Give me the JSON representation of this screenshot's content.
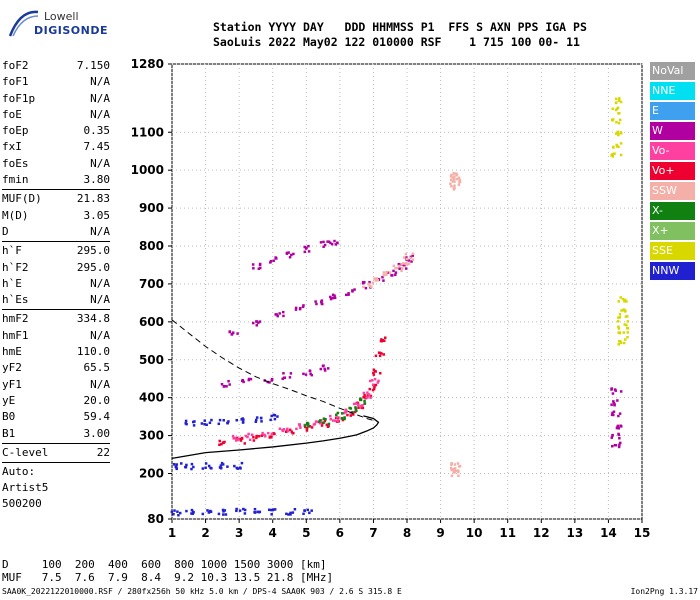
{
  "logo": {
    "line1": "Lowell",
    "line2": "DIGISONDE"
  },
  "header": {
    "line1": "Station YYYY DAY   DDD HHMMSS P1  FFS S AXN PPS IGA PS",
    "line2": "SaoLuis 2022 May02 122 010000 RSF    1 715 100 00- 11"
  },
  "params_groups": [
    [
      {
        "k": "foF2",
        "v": "7.150"
      },
      {
        "k": "foF1",
        "v": "N/A"
      },
      {
        "k": "foF1p",
        "v": "N/A"
      },
      {
        "k": "foE",
        "v": "N/A"
      },
      {
        "k": "foEp",
        "v": "0.35"
      },
      {
        "k": "fxI",
        "v": "7.45"
      },
      {
        "k": "foEs",
        "v": "N/A"
      },
      {
        "k": "fmin",
        "v": "3.80"
      }
    ],
    [
      {
        "k": "MUF(D)",
        "v": "21.83"
      },
      {
        "k": "M(D)",
        "v": "3.05"
      },
      {
        "k": "D",
        "v": "N/A"
      }
    ],
    [
      {
        "k": "h`F",
        "v": "295.0"
      },
      {
        "k": "h`F2",
        "v": "295.0"
      },
      {
        "k": "h`E",
        "v": "N/A"
      },
      {
        "k": "h`Es",
        "v": "N/A"
      }
    ],
    [
      {
        "k": "hmF2",
        "v": "334.8"
      },
      {
        "k": "hmF1",
        "v": "N/A"
      },
      {
        "k": "hmE",
        "v": "110.0"
      },
      {
        "k": "yF2",
        "v": "65.5"
      },
      {
        "k": "yF1",
        "v": "N/A"
      },
      {
        "k": "yE",
        "v": "20.0"
      },
      {
        "k": "B0",
        "v": "59.4"
      },
      {
        "k": "B1",
        "v": "3.00"
      }
    ],
    [
      {
        "k": "C-level",
        "v": "22"
      }
    ]
  ],
  "params_extra": [
    "Auto:",
    "Artist5",
    "500200"
  ],
  "legend": [
    {
      "label": "NoVal",
      "color": "#a0a0a0"
    },
    {
      "label": "NNE",
      "color": "#00e0f0"
    },
    {
      "label": "E",
      "color": "#3fa0f0"
    },
    {
      "label": "W",
      "color": "#b000a0"
    },
    {
      "label": "Vo-",
      "color": "#ff40a0"
    },
    {
      "label": "Vo+",
      "color": "#ee0030"
    },
    {
      "label": "SSW",
      "color": "#f4b0a8"
    },
    {
      "label": "X-",
      "color": "#108010"
    },
    {
      "label": "X+",
      "color": "#80c060"
    },
    {
      "label": "SSE",
      "color": "#d8d800"
    },
    {
      "label": "NNW",
      "color": "#2020d0"
    }
  ],
  "footer": {
    "line1": "D     100  200  400  600  800 1000 1500 3000 [km]",
    "line2": "MUF   7.5  7.6  7.9  8.4  9.2 10.3 13.5 21.8 [MHz]"
  },
  "bottom": {
    "left": "SAA0K_2022122010000.RSF / 280fx256h 50 kHz 5.0 km / DPS-4 SAA0K 903 / 2.6 S 315.8 E",
    "right": "Ion2Png 1.3.17"
  },
  "chart_data": {
    "type": "scatter",
    "xlim": [
      1,
      15
    ],
    "ylim": [
      80,
      1280
    ],
    "x_ticks": [
      1,
      2,
      3,
      4,
      5,
      6,
      7,
      8,
      9,
      10,
      11,
      12,
      13,
      14,
      15
    ],
    "y_ticks": [
      80,
      200,
      300,
      400,
      500,
      600,
      700,
      800,
      900,
      1000,
      1100,
      1280
    ],
    "grid": true,
    "profile": {
      "x": [
        1.0,
        2.0,
        3.0,
        4.0,
        5.0,
        5.5,
        6.0,
        6.5,
        6.8,
        7.0,
        7.1,
        7.15,
        7.0,
        6.7
      ],
      "y": [
        240,
        255,
        262,
        270,
        280,
        286,
        293,
        302,
        312,
        320,
        328,
        335,
        345,
        352
      ]
    },
    "mufd": {
      "x": [
        1.0,
        1.5,
        2.0,
        2.5,
        3.0,
        3.5,
        4.0,
        4.5,
        5.0,
        5.5,
        6.0,
        6.5,
        6.8,
        7.0
      ],
      "y": [
        605,
        570,
        535,
        505,
        478,
        455,
        437,
        422,
        405,
        390,
        372,
        355,
        345,
        340
      ]
    },
    "traces": [
      {
        "name": "F-trace",
        "color": "#ee0030",
        "x": [
          2.5,
          3,
          3.5,
          4,
          4.5,
          5,
          5.5,
          6,
          6.3,
          6.6,
          6.8,
          7.0,
          7.1,
          7.15,
          7.2
        ],
        "y": [
          285,
          290,
          298,
          305,
          312,
          322,
          334,
          348,
          362,
          382,
          402,
          430,
          470,
          520,
          560
        ]
      },
      {
        "name": "F-trace-2",
        "color": "#ff40a0",
        "x": [
          2.8,
          3.3,
          3.8,
          4.3,
          4.8,
          5.3,
          5.8,
          6.2,
          6.5,
          6.8,
          7.0
        ],
        "y": [
          295,
          300,
          308,
          316,
          325,
          336,
          350,
          366,
          385,
          410,
          445
        ]
      },
      {
        "name": "F-trace-3",
        "color": "#108010",
        "x": [
          5.0,
          5.5,
          6.0,
          6.4,
          6.7
        ],
        "y": [
          330,
          340,
          355,
          372,
          395
        ]
      },
      {
        "name": "2F-trace",
        "color": "#b000a0",
        "x": [
          2.8,
          3.5,
          4.2,
          4.8,
          5.3,
          5.8,
          6.3,
          6.8,
          7.2,
          7.5,
          7.8,
          8.0
        ],
        "y": [
          575,
          600,
          622,
          640,
          655,
          668,
          682,
          700,
          715,
          730,
          750,
          770
        ]
      },
      {
        "name": "2F-trace-b",
        "color": "#f4b0a8",
        "x": [
          6.8,
          7.1,
          7.4,
          7.7,
          7.9,
          8.0
        ],
        "y": [
          700,
          712,
          728,
          745,
          760,
          775
        ]
      },
      {
        "name": "3F-trace",
        "color": "#b000a0",
        "x": [
          3.5,
          4.0,
          4.5,
          5.0,
          5.5,
          5.8
        ],
        "y": [
          750,
          765,
          780,
          795,
          808,
          815
        ]
      },
      {
        "name": "E-trace-1",
        "color": "#2020d0",
        "x": [
          1.1,
          1.5,
          2.0,
          2.5,
          3.0,
          3.5,
          4.0,
          4.5,
          5.0
        ],
        "y": [
          100,
          101,
          101,
          102,
          102,
          102,
          103,
          103,
          103
        ]
      },
      {
        "name": "E-trace-2",
        "color": "#2020d0",
        "x": [
          1.1,
          1.5,
          2.0,
          2.5,
          2.9
        ],
        "y": [
          222,
          222,
          223,
          223,
          223
        ]
      },
      {
        "name": "mid-trace",
        "color": "#b000a0",
        "x": [
          2.6,
          3.2,
          3.8,
          4.4,
          5.0,
          5.5
        ],
        "y": [
          440,
          445,
          450,
          460,
          470,
          480
        ]
      },
      {
        "name": "low-trace",
        "color": "#2020d0",
        "x": [
          1.5,
          2.0,
          2.5,
          3.0,
          3.5,
          4.0
        ],
        "y": [
          335,
          338,
          340,
          342,
          345,
          350
        ]
      },
      {
        "name": "vert-14.2",
        "color": "#d8d800",
        "x": [
          14.2,
          14.2,
          14.2,
          14.2,
          14.2,
          14.2
        ],
        "y": [
          1040,
          1070,
          1100,
          1130,
          1160,
          1185
        ]
      },
      {
        "name": "vert-14.2b",
        "color": "#b000a0",
        "x": [
          14.2,
          14.2,
          14.2,
          14.2,
          14.2,
          14.2
        ],
        "y": [
          280,
          300,
          330,
          360,
          390,
          420
        ]
      },
      {
        "name": "vert-14.4",
        "color": "#d8d800",
        "x": [
          14.4,
          14.4,
          14.4,
          14.4,
          14.4,
          14.4
        ],
        "y": [
          550,
          570,
          590,
          610,
          630,
          660
        ]
      },
      {
        "name": "vert-9.4",
        "color": "#f4b0a8",
        "x": [
          9.4,
          9.4,
          9.4,
          9.4
        ],
        "y": [
          960,
          970,
          980,
          990
        ]
      },
      {
        "name": "vert-9.4b",
        "color": "#f4b0a8",
        "x": [
          9.4,
          9.4,
          9.4
        ],
        "y": [
          205,
          215,
          225
        ]
      }
    ]
  }
}
